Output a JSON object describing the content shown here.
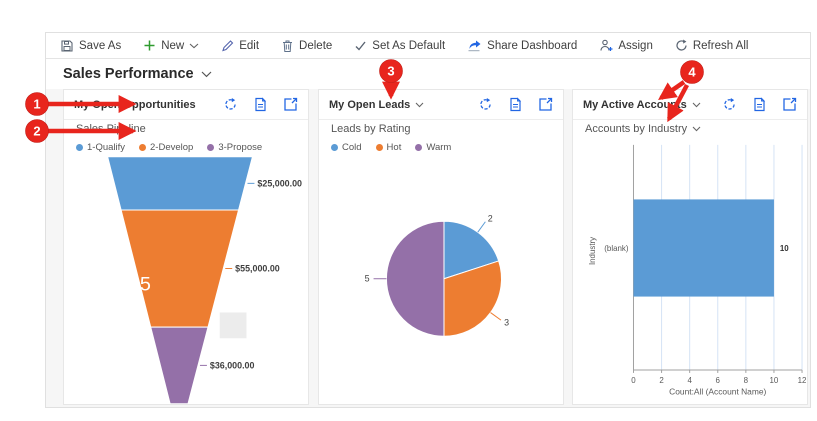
{
  "toolbar": {
    "items": [
      {
        "label": "Save As",
        "icon": "save-as-icon"
      },
      {
        "label": "New",
        "icon": "plus-icon",
        "chevron": true
      },
      {
        "label": "Edit",
        "icon": "pencil-icon"
      },
      {
        "label": "Delete",
        "icon": "trash-icon"
      },
      {
        "label": "Set As Default",
        "icon": "check-icon"
      },
      {
        "label": "Share Dashboard",
        "icon": "share-icon"
      },
      {
        "label": "Assign",
        "icon": "person-add-icon"
      },
      {
        "label": "Refresh All",
        "icon": "refresh-icon"
      }
    ]
  },
  "page": {
    "title": "Sales Performance"
  },
  "panels": [
    {
      "title": "My Open Opportunities",
      "selector": "Sales Pipeline",
      "legend": [
        {
          "label": "1-Qualify",
          "color": "#5B9BD5"
        },
        {
          "label": "2-Develop",
          "color": "#ED7D31"
        },
        {
          "label": "3-Propose",
          "color": "#9470A8"
        }
      ]
    },
    {
      "title": "My Open Leads",
      "selector": "Leads by Rating",
      "legend": [
        {
          "label": "Cold",
          "color": "#5B9BD5"
        },
        {
          "label": "Hot",
          "color": "#ED7D31"
        },
        {
          "label": "Warm",
          "color": "#9470A8"
        }
      ]
    },
    {
      "title": "My Active Accounts",
      "selector": "Accounts by Industry"
    }
  ],
  "chart_data": [
    {
      "type": "funnel",
      "title": "Sales Pipeline",
      "categories": [
        "1-Qualify",
        "2-Develop",
        "3-Propose"
      ],
      "values": [
        25000,
        55000,
        36000
      ],
      "value_labels": [
        "$25,000.00",
        "$55,000.00",
        "$36,000.00"
      ],
      "colors": [
        "#5B9BD5",
        "#ED7D31",
        "#9470A8"
      ],
      "inside_label": {
        "text": "5",
        "segment_index": 1
      }
    },
    {
      "type": "pie",
      "title": "Leads by Rating",
      "categories": [
        "Cold",
        "Hot",
        "Warm"
      ],
      "values": [
        2,
        3,
        5
      ],
      "data_labels": [
        "2",
        "3",
        "5"
      ],
      "colors": [
        "#5B9BD5",
        "#ED7D31",
        "#9470A8"
      ],
      "start_angle_deg": -90,
      "direction": "clockwise"
    },
    {
      "type": "bar",
      "title": "Accounts by Industry",
      "orientation": "horizontal",
      "categories": [
        "(blank)"
      ],
      "values": [
        10
      ],
      "value_labels": [
        "10"
      ],
      "color": "#5B9BD5",
      "xlabel": "Count:All (Account Name)",
      "ylabel": "Industry",
      "xlim": [
        0,
        12
      ],
      "xticks": [
        0,
        2,
        4,
        6,
        8,
        10,
        12
      ],
      "grid": true
    }
  ],
  "callouts": [
    {
      "number": "1"
    },
    {
      "number": "2"
    },
    {
      "number": "3"
    },
    {
      "number": "4"
    }
  ],
  "colors": {
    "accent_blue": "#2266E3",
    "callout_red": "#E8251D",
    "series_blue": "#5B9BD5",
    "series_orange": "#ED7D31",
    "series_purple": "#9470A8",
    "grid_blue": "#d4e3f5"
  }
}
